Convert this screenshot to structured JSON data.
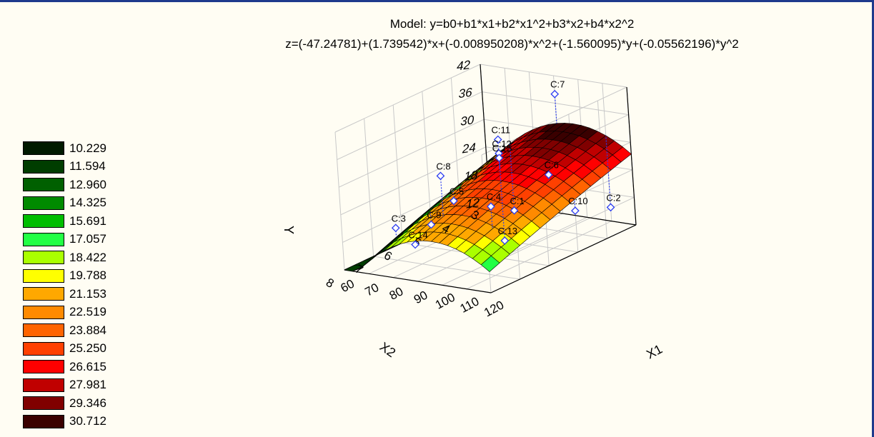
{
  "title": {
    "model": "Model: y=b0+b1*x1+b2*x1^2+b3*x2+b4*x2^2",
    "equation": "z=(-47.24781)+(1.739542)*x+(-0.008950208)*x^2+(-1.560095)*y+(-0.05562196)*y^2"
  },
  "colors": {
    "frame": "#1e3a8c",
    "background": "#fffdf3",
    "marker": "#2a3cf0"
  },
  "legend": {
    "placement": "left",
    "items": [
      {
        "label": "10.229",
        "color": "#001a00"
      },
      {
        "label": "11.594",
        "color": "#003d00"
      },
      {
        "label": "12.960",
        "color": "#006000"
      },
      {
        "label": "14.325",
        "color": "#008a00"
      },
      {
        "label": "15.691",
        "color": "#00be00"
      },
      {
        "label": "17.057",
        "color": "#22ff44"
      },
      {
        "label": "18.422",
        "color": "#aaff00"
      },
      {
        "label": "19.788",
        "color": "#ffff00"
      },
      {
        "label": "21.153",
        "color": "#ffa800"
      },
      {
        "label": "22.519",
        "color": "#ff8a00"
      },
      {
        "label": "23.884",
        "color": "#ff6400"
      },
      {
        "label": "25.250",
        "color": "#ff4000"
      },
      {
        "label": "26.615",
        "color": "#ff0000"
      },
      {
        "label": "27.981",
        "color": "#c00000"
      },
      {
        "label": "29.346",
        "color": "#800000"
      },
      {
        "label": "30.712",
        "color": "#3a0000"
      }
    ]
  },
  "chart_data": {
    "type": "surface",
    "title": "Model: y=b0+b1*x1+b2*x1^2+b3*x2+b4*x2^2",
    "subtitle": "z=(-47.24781)+(1.739542)*x+(-0.008950208)*x^2+(-1.560095)*y+(-0.05562196)*y^2",
    "coefficients": {
      "b0": -47.24781,
      "b1": 1.739542,
      "b2": -0.008950208,
      "b3": -1.560095,
      "b4": -0.05562196
    },
    "xlabel": "X1",
    "ylabel": "X2",
    "zlabel": "Y",
    "xlim": [
      60,
      120
    ],
    "ylim": [
      3,
      8
    ],
    "zlim": [
      12,
      42
    ],
    "xticks": [
      "60",
      "70",
      "80",
      "90",
      "100",
      "110",
      "120"
    ],
    "yticks": [
      "3",
      "4",
      "5",
      "6",
      "7",
      "8"
    ],
    "zticks": [
      "12",
      "18",
      "24",
      "30",
      "36",
      "42"
    ],
    "grid": true,
    "points": [
      {
        "label": "C:1",
        "x": 70,
        "y": 3,
        "z": 11
      },
      {
        "label": "C:2",
        "x": 110,
        "y": 3,
        "z": 15
      },
      {
        "label": "C:3",
        "x": 70,
        "y": 7,
        "z": 19
      },
      {
        "label": "C:4",
        "x": 110,
        "y": 7,
        "z": 27
      },
      {
        "label": "C:5",
        "x": 70,
        "y": 5,
        "z": 19
      },
      {
        "label": "C:6",
        "x": 110,
        "y": 5,
        "z": 28
      },
      {
        "label": "C:7",
        "x": 90,
        "y": 3,
        "z": 38
      },
      {
        "label": "C:8",
        "x": 90,
        "y": 7,
        "z": 32
      },
      {
        "label": "C:9",
        "x": 60,
        "y": 5,
        "z": 13
      },
      {
        "label": "C:10",
        "x": 120,
        "y": 5,
        "z": 21
      },
      {
        "label": "C:11",
        "x": 90,
        "y": 5,
        "z": 34
      },
      {
        "label": "C:12",
        "x": 90,
        "y": 5,
        "z": 31
      },
      {
        "label": "C:13",
        "x": 90,
        "y": 5,
        "z": 12
      },
      {
        "label": "C:14",
        "x": 90,
        "y": 8,
        "z": 20
      },
      {
        "label": "C:15",
        "x": 90,
        "y": 5,
        "z": 30
      }
    ]
  }
}
